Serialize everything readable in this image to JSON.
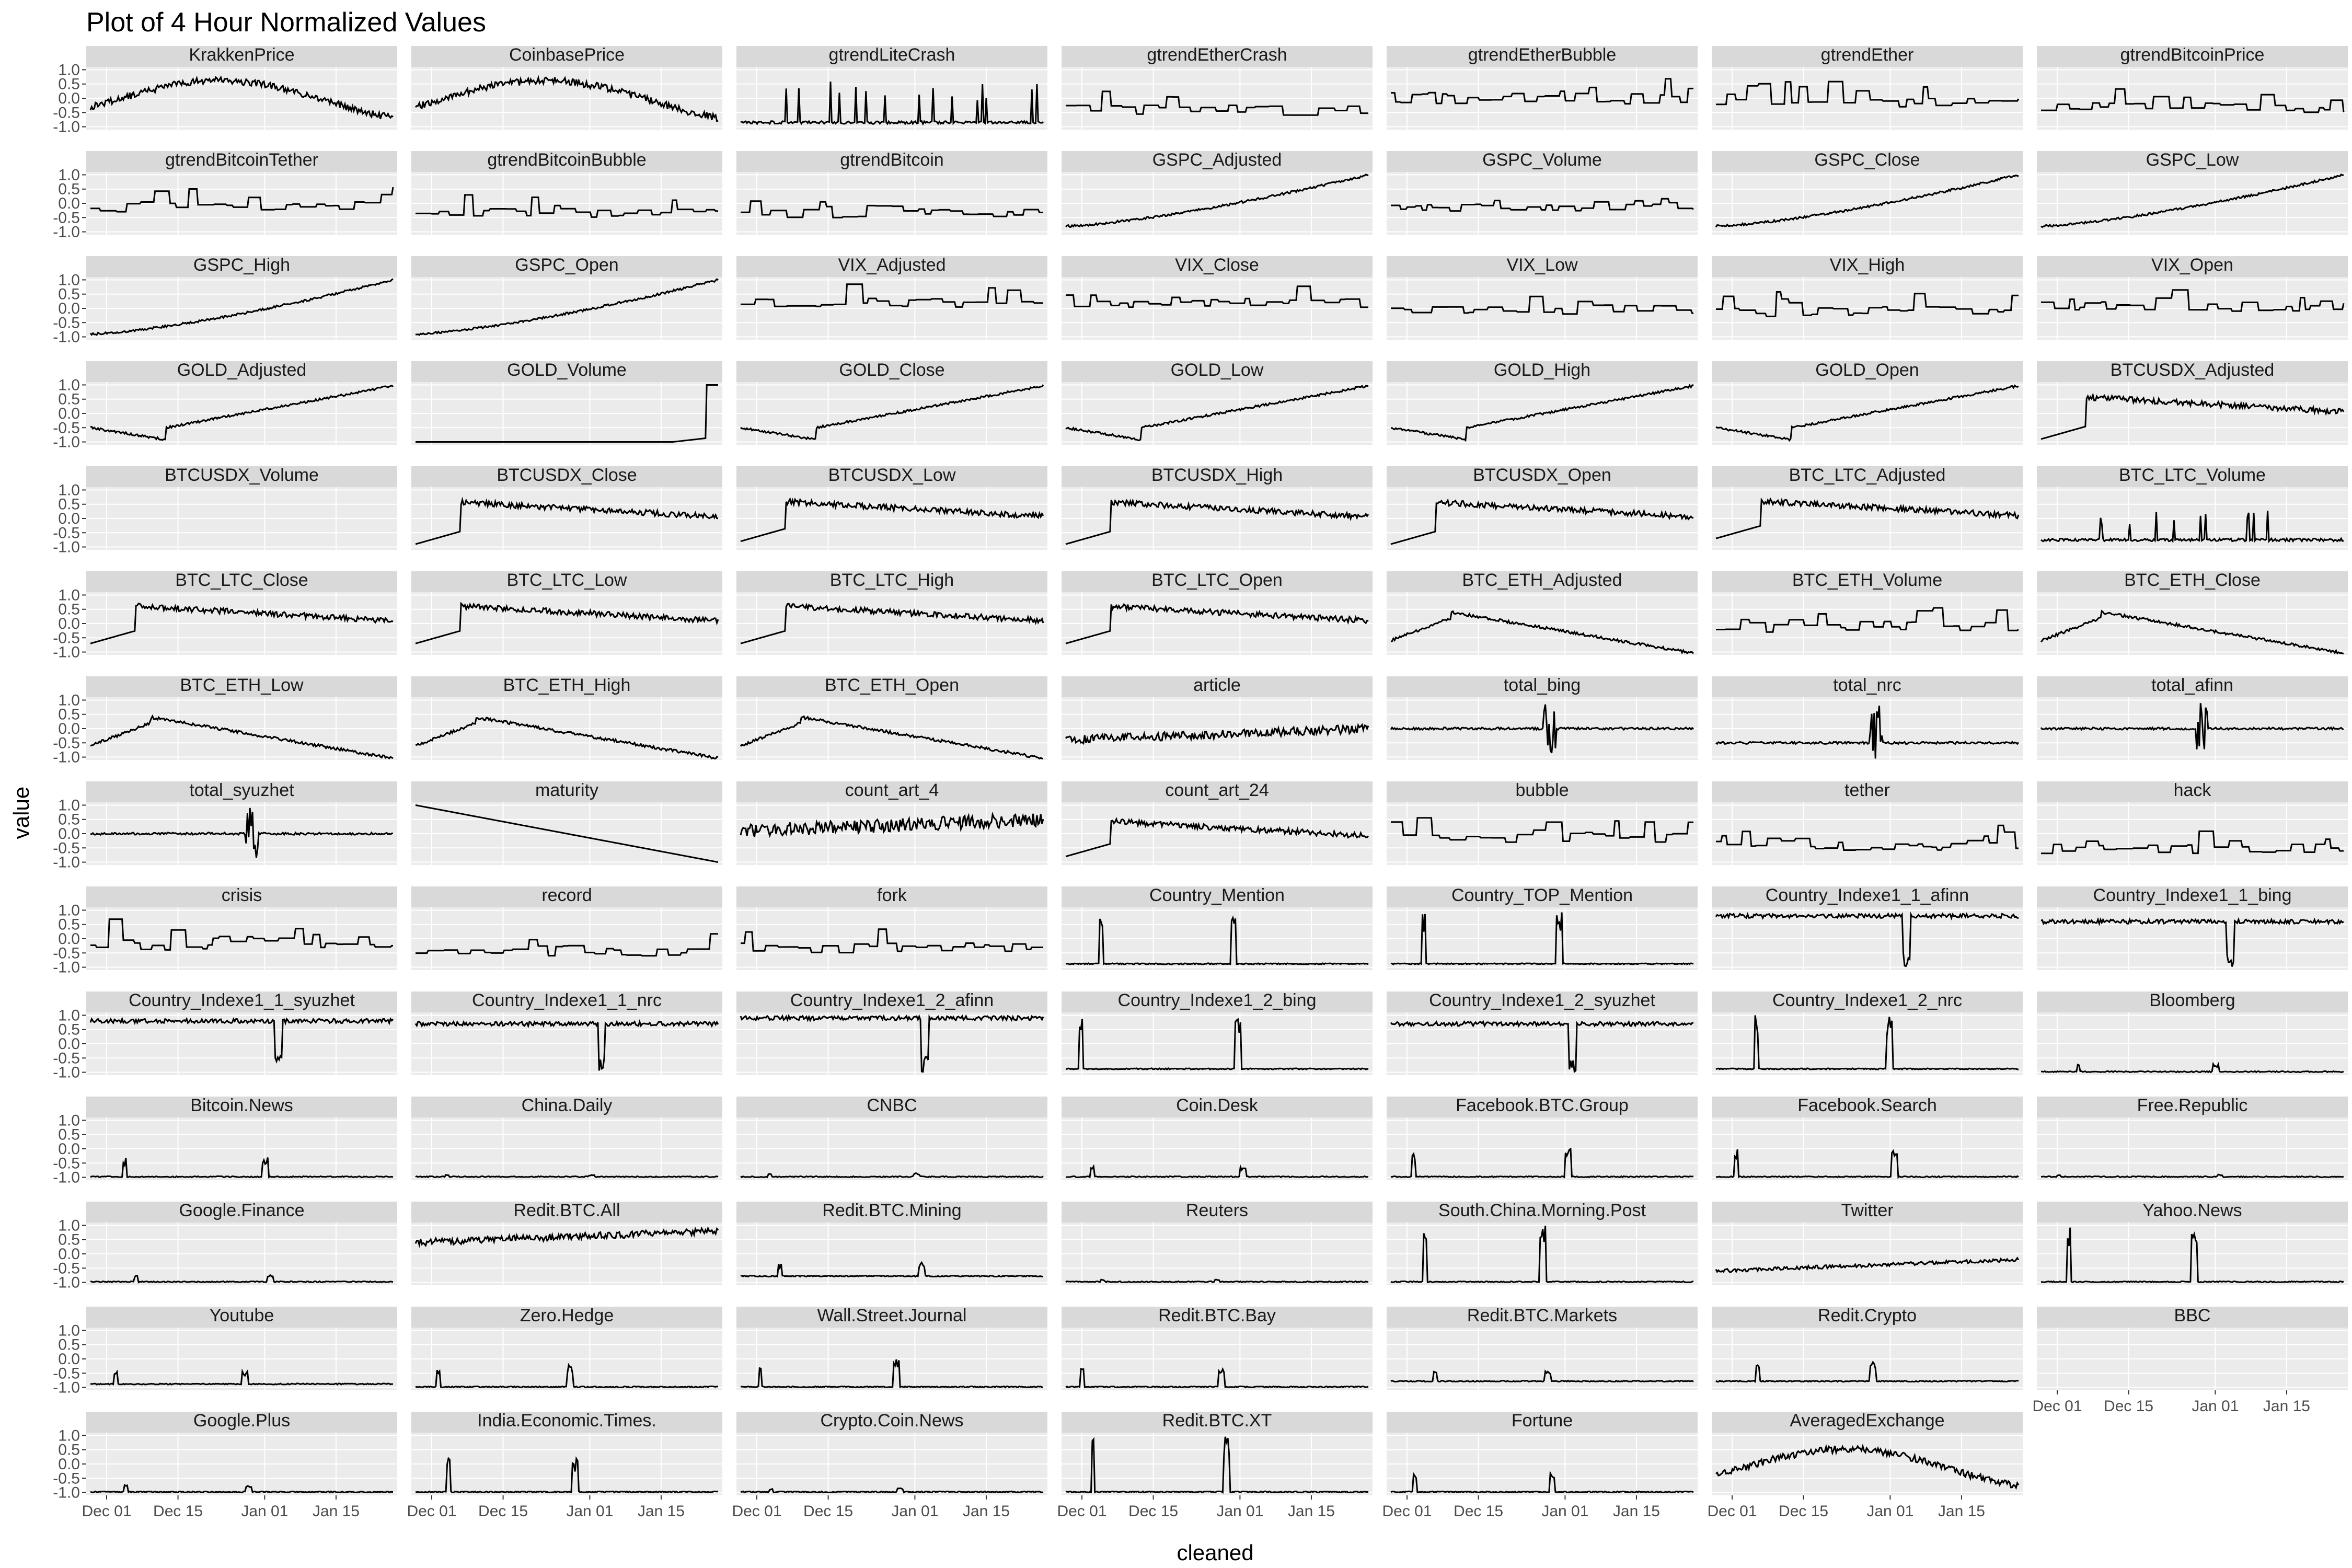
{
  "chart_data": {
    "type": "line",
    "title": "Plot of 4 Hour Normalized Values",
    "xlabel": "cleaned",
    "ylabel": "value",
    "xlim": [
      "2017-11-27",
      "2018-01-27"
    ],
    "ylim": [
      -1.1,
      1.1
    ],
    "x_ticks": [
      "Dec 01",
      "Dec 15",
      "Jan 01",
      "Jan 15"
    ],
    "y_ticks": [
      "-1.0",
      "-0.5",
      "0.0",
      "0.5",
      "1.0"
    ],
    "grid": true,
    "facet_columns": 7,
    "colors": {
      "panel_bg": "#ebebeb",
      "strip_bg": "#d9d9d9",
      "grid": "#ffffff",
      "line": "#000000"
    },
    "series": [
      {
        "name": "KrakkenPrice",
        "shape": "wave",
        "level": -0.1,
        "amp": 0.8,
        "seed": 1
      },
      {
        "name": "CoinbasePrice",
        "shape": "wave",
        "level": -0.1,
        "amp": 0.8,
        "seed": 2
      },
      {
        "name": "gtrendLiteCrash",
        "shape": "spikes",
        "level": -0.9,
        "amp": 1.6,
        "seed": 3
      },
      {
        "name": "gtrendEtherCrash",
        "shape": "steps",
        "level": -0.6,
        "amp": 1.0,
        "seed": 4
      },
      {
        "name": "gtrendEtherBubble",
        "shape": "steps",
        "level": -0.2,
        "amp": 1.0,
        "seed": 5
      },
      {
        "name": "gtrendEther",
        "shape": "steps",
        "level": -0.3,
        "amp": 0.9,
        "seed": 6
      },
      {
        "name": "gtrendBitcoinPrice",
        "shape": "steps",
        "level": -0.5,
        "amp": 0.9,
        "seed": 7
      },
      {
        "name": "gtrendBitcoinTether",
        "shape": "steps",
        "level": -0.3,
        "amp": 0.9,
        "seed": 8
      },
      {
        "name": "gtrendBitcoinBubble",
        "shape": "steps",
        "level": -0.5,
        "amp": 0.8,
        "seed": 9
      },
      {
        "name": "gtrendBitcoin",
        "shape": "steps",
        "level": -0.5,
        "amp": 0.8,
        "seed": 10
      },
      {
        "name": "GSPC_Adjusted",
        "shape": "rise",
        "level": -0.8,
        "amp": 1.8,
        "seed": 11
      },
      {
        "name": "GSPC_Volume",
        "shape": "steps",
        "level": -0.3,
        "amp": 0.7,
        "seed": 12
      },
      {
        "name": "GSPC_Close",
        "shape": "rise",
        "level": -0.8,
        "amp": 1.8,
        "seed": 13
      },
      {
        "name": "GSPC_Low",
        "shape": "rise",
        "level": -0.8,
        "amp": 1.8,
        "seed": 14
      },
      {
        "name": "GSPC_High",
        "shape": "rise",
        "level": -0.9,
        "amp": 1.9,
        "seed": 15
      },
      {
        "name": "GSPC_Open",
        "shape": "rise",
        "level": -0.9,
        "amp": 1.9,
        "seed": 16
      },
      {
        "name": "VIX_Adjusted",
        "shape": "steps",
        "level": 0.0,
        "amp": 0.9,
        "seed": 17
      },
      {
        "name": "VIX_Close",
        "shape": "steps",
        "level": 0.0,
        "amp": 0.9,
        "seed": 18
      },
      {
        "name": "VIX_Low",
        "shape": "steps",
        "level": -0.2,
        "amp": 0.8,
        "seed": 19
      },
      {
        "name": "VIX_High",
        "shape": "steps",
        "level": -0.3,
        "amp": 0.9,
        "seed": 20
      },
      {
        "name": "VIX_Open",
        "shape": "steps",
        "level": -0.1,
        "amp": 0.9,
        "seed": 21
      },
      {
        "name": "GOLD_Adjusted",
        "shape": "vrise",
        "level": -0.5,
        "amp": 1.4,
        "seed": 22
      },
      {
        "name": "GOLD_Volume",
        "shape": "endspike",
        "level": -1.0,
        "amp": 2.0,
        "seed": 23
      },
      {
        "name": "GOLD_Close",
        "shape": "vrise",
        "level": -0.5,
        "amp": 1.4,
        "seed": 24
      },
      {
        "name": "GOLD_Low",
        "shape": "vrise",
        "level": -0.5,
        "amp": 1.4,
        "seed": 25
      },
      {
        "name": "GOLD_High",
        "shape": "vrise",
        "level": -0.5,
        "amp": 1.4,
        "seed": 26
      },
      {
        "name": "GOLD_Open",
        "shape": "vrise",
        "level": -0.5,
        "amp": 1.4,
        "seed": 27
      },
      {
        "name": "BTCUSDX_Adjusted",
        "shape": "plateau",
        "level": -0.3,
        "amp": 1.2,
        "seed": 28
      },
      {
        "name": "BTCUSDX_Volume",
        "shape": "empty",
        "level": 0,
        "amp": 0,
        "seed": 29
      },
      {
        "name": "BTCUSDX_Close",
        "shape": "plateau",
        "level": -0.3,
        "amp": 1.2,
        "seed": 30
      },
      {
        "name": "BTCUSDX_Low",
        "shape": "plateau",
        "level": -0.2,
        "amp": 1.1,
        "seed": 31
      },
      {
        "name": "BTCUSDX_High",
        "shape": "plateau",
        "level": -0.3,
        "amp": 1.2,
        "seed": 32
      },
      {
        "name": "BTCUSDX_Open",
        "shape": "plateau",
        "level": -0.3,
        "amp": 1.2,
        "seed": 33
      },
      {
        "name": "BTC_LTC_Adjusted",
        "shape": "plateau",
        "level": -0.1,
        "amp": 1.0,
        "seed": 34
      },
      {
        "name": "BTC_LTC_Volume",
        "shape": "spikes",
        "level": -0.8,
        "amp": 1.2,
        "seed": 35
      },
      {
        "name": "BTC_LTC_Close",
        "shape": "plateau",
        "level": -0.1,
        "amp": 1.0,
        "seed": 36
      },
      {
        "name": "BTC_LTC_Low",
        "shape": "plateau",
        "level": -0.1,
        "amp": 1.0,
        "seed": 37
      },
      {
        "name": "BTC_LTC_High",
        "shape": "plateau",
        "level": -0.1,
        "amp": 1.0,
        "seed": 38
      },
      {
        "name": "BTC_LTC_Open",
        "shape": "plateau",
        "level": -0.1,
        "amp": 1.0,
        "seed": 39
      },
      {
        "name": "BTC_ETH_Adjusted",
        "shape": "fall",
        "level": -0.4,
        "amp": 1.0,
        "seed": 40
      },
      {
        "name": "BTC_ETH_Volume",
        "shape": "steps",
        "level": -0.3,
        "amp": 0.9,
        "seed": 41
      },
      {
        "name": "BTC_ETH_Close",
        "shape": "fall",
        "level": -0.4,
        "amp": 1.0,
        "seed": 42
      },
      {
        "name": "BTC_ETH_Low",
        "shape": "fall",
        "level": -0.4,
        "amp": 1.0,
        "seed": 43
      },
      {
        "name": "BTC_ETH_High",
        "shape": "fall",
        "level": -0.4,
        "amp": 1.0,
        "seed": 44
      },
      {
        "name": "BTC_ETH_Open",
        "shape": "fall",
        "level": -0.4,
        "amp": 1.0,
        "seed": 45
      },
      {
        "name": "article",
        "shape": "noisy",
        "level": -0.4,
        "amp": 0.5,
        "seed": 46
      },
      {
        "name": "total_bing",
        "shape": "flatspike",
        "level": 0.0,
        "amp": 0.9,
        "seed": 47
      },
      {
        "name": "total_nrc",
        "shape": "flatspike",
        "level": -0.5,
        "amp": 1.4,
        "seed": 48
      },
      {
        "name": "total_afinn",
        "shape": "flatspike",
        "level": 0.0,
        "amp": 0.9,
        "seed": 49
      },
      {
        "name": "total_syuzhet",
        "shape": "flatspike",
        "level": 0.0,
        "amp": 1.0,
        "seed": 50
      },
      {
        "name": "maturity",
        "shape": "linear",
        "level": 1.0,
        "amp": -2.0,
        "seed": 51
      },
      {
        "name": "count_art_4",
        "shape": "noisy",
        "level": 0.1,
        "amp": 0.8,
        "seed": 52
      },
      {
        "name": "count_art_24",
        "shape": "plateau",
        "level": -0.2,
        "amp": 0.9,
        "seed": 53
      },
      {
        "name": "bubble",
        "shape": "steps",
        "level": -0.3,
        "amp": 0.9,
        "seed": 54
      },
      {
        "name": "tether",
        "shape": "steps",
        "level": -0.6,
        "amp": 0.9,
        "seed": 55
      },
      {
        "name": "hack",
        "shape": "steps",
        "level": -0.7,
        "amp": 0.9,
        "seed": 56
      },
      {
        "name": "crisis",
        "shape": "steps",
        "level": -0.4,
        "amp": 1.2,
        "seed": 57
      },
      {
        "name": "record",
        "shape": "steps",
        "level": -0.6,
        "amp": 0.9,
        "seed": 58
      },
      {
        "name": "fork",
        "shape": "steps",
        "level": -0.5,
        "amp": 0.9,
        "seed": 59
      },
      {
        "name": "Country_Mention",
        "shape": "spikeflat",
        "level": -0.9,
        "amp": 1.9,
        "seed": 60
      },
      {
        "name": "Country_TOP_Mention",
        "shape": "spikeflat",
        "level": -0.9,
        "amp": 1.9,
        "seed": 61
      },
      {
        "name": "Country_Indexe1_1_afinn",
        "shape": "highdip",
        "level": 0.8,
        "amp": 1.8,
        "seed": 62
      },
      {
        "name": "Country_Indexe1_1_bing",
        "shape": "highdip",
        "level": 0.6,
        "amp": 1.6,
        "seed": 63
      },
      {
        "name": "Country_Indexe1_1_syuzhet",
        "shape": "highdip",
        "level": 0.8,
        "amp": 1.7,
        "seed": 64
      },
      {
        "name": "Country_Indexe1_1_nrc",
        "shape": "highdip",
        "level": 0.7,
        "amp": 1.7,
        "seed": 65
      },
      {
        "name": "Country_Indexe1_2_afinn",
        "shape": "highdip",
        "level": 0.9,
        "amp": 1.9,
        "seed": 66
      },
      {
        "name": "Country_Indexe1_2_bing",
        "shape": "spikeflat",
        "level": -0.9,
        "amp": 1.9,
        "seed": 67
      },
      {
        "name": "Country_Indexe1_2_syuzhet",
        "shape": "highdip",
        "level": 0.7,
        "amp": 1.7,
        "seed": 68
      },
      {
        "name": "Country_Indexe1_2_nrc",
        "shape": "spikeflat",
        "level": -0.9,
        "amp": 1.9,
        "seed": 69
      },
      {
        "name": "Bloomberg",
        "shape": "spikeflat",
        "level": -1.0,
        "amp": 0.3,
        "seed": 70
      },
      {
        "name": "Bitcoin.News",
        "shape": "spikeflat",
        "level": -1.0,
        "amp": 0.7,
        "seed": 71
      },
      {
        "name": "China.Daily",
        "shape": "spikeflat",
        "level": -1.0,
        "amp": 0.1,
        "seed": 72
      },
      {
        "name": "CNBC",
        "shape": "spikeflat",
        "level": -1.0,
        "amp": 0.15,
        "seed": 73
      },
      {
        "name": "Coin.Desk",
        "shape": "spikeflat",
        "level": -1.0,
        "amp": 0.4,
        "seed": 74
      },
      {
        "name": "Facebook.BTC.Group",
        "shape": "spikeflat",
        "level": -1.0,
        "amp": 1.0,
        "seed": 75
      },
      {
        "name": "Facebook.Search",
        "shape": "spikeflat",
        "level": -1.0,
        "amp": 1.0,
        "seed": 76
      },
      {
        "name": "Free.Republic",
        "shape": "spikeflat",
        "level": -1.0,
        "amp": 0.1,
        "seed": 77
      },
      {
        "name": "Google.Finance",
        "shape": "spikeflat",
        "level": -1.0,
        "amp": 0.3,
        "seed": 78
      },
      {
        "name": "Redit.BTC.All",
        "shape": "noisy",
        "level": 0.4,
        "amp": 0.4,
        "seed": 79
      },
      {
        "name": "Redit.BTC.Mining",
        "shape": "spikeflat",
        "level": -0.8,
        "amp": 0.5,
        "seed": 80
      },
      {
        "name": "Reuters",
        "shape": "spikeflat",
        "level": -1.0,
        "amp": 0.1,
        "seed": 81
      },
      {
        "name": "South.China.Morning.Post",
        "shape": "spikeflat",
        "level": -1.0,
        "amp": 2.0,
        "seed": 82
      },
      {
        "name": "Twitter",
        "shape": "noisy",
        "level": -0.6,
        "amp": 0.2,
        "seed": 83
      },
      {
        "name": "Yahoo.News",
        "shape": "spikeflat",
        "level": -1.0,
        "amp": 2.0,
        "seed": 84
      },
      {
        "name": "Youtube",
        "shape": "spikeflat",
        "level": -0.9,
        "amp": 0.5,
        "seed": 85
      },
      {
        "name": "Zero.Hedge",
        "shape": "spikeflat",
        "level": -1.0,
        "amp": 0.8,
        "seed": 86
      },
      {
        "name": "Wall.Street.Journal",
        "shape": "spikeflat",
        "level": -1.0,
        "amp": 1.0,
        "seed": 87
      },
      {
        "name": "Redit.BTC.Bay",
        "shape": "spikeflat",
        "level": -1.0,
        "amp": 0.8,
        "seed": 88
      },
      {
        "name": "Redit.BTC.Markets",
        "shape": "spikeflat",
        "level": -0.8,
        "amp": 0.4,
        "seed": 89
      },
      {
        "name": "Redit.Crypto",
        "shape": "spikeflat",
        "level": -0.8,
        "amp": 0.7,
        "seed": 90
      },
      {
        "name": "BBC",
        "shape": "empty",
        "level": 0,
        "amp": 0,
        "seed": 91
      },
      {
        "name": "Google.Plus",
        "shape": "spikeflat",
        "level": -1.0,
        "amp": 0.3,
        "seed": 92
      },
      {
        "name": "India.Economic.Times.",
        "shape": "spikeflat",
        "level": -1.0,
        "amp": 1.2,
        "seed": 93
      },
      {
        "name": "Crypto.Coin.News",
        "shape": "spikeflat",
        "level": -1.0,
        "amp": 0.15,
        "seed": 94
      },
      {
        "name": "Redit.BTC.XT",
        "shape": "spikeflat",
        "level": -1.0,
        "amp": 2.0,
        "seed": 95
      },
      {
        "name": "Fortune",
        "shape": "spikeflat",
        "level": -1.0,
        "amp": 0.7,
        "seed": 96
      },
      {
        "name": "AveragedExchange",
        "shape": "wave",
        "level": -0.2,
        "amp": 0.8,
        "seed": 97
      }
    ]
  }
}
